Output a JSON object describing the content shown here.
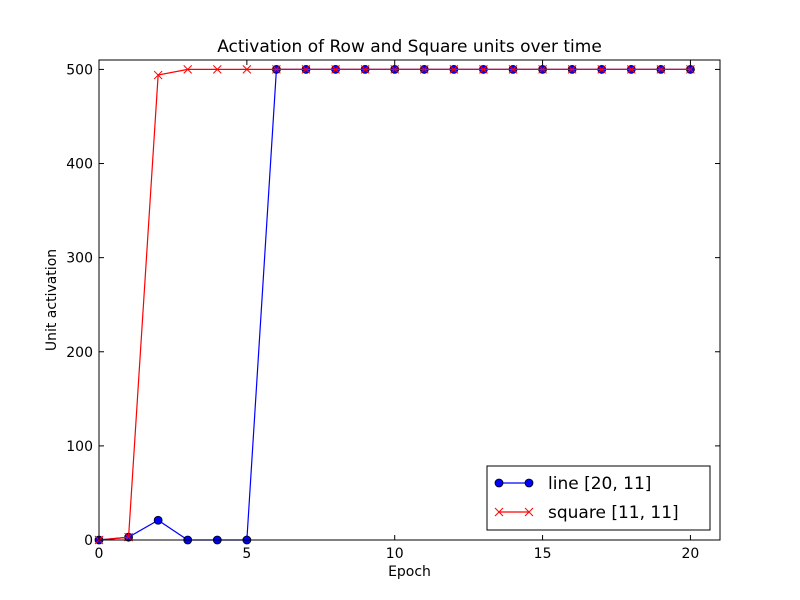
{
  "chart_data": {
    "type": "line",
    "title": "Activation of Row and Square units over time",
    "xlabel": "Epoch",
    "ylabel": "Unit activation",
    "xlim": [
      0,
      21
    ],
    "ylim": [
      0,
      510
    ],
    "xticks": [
      0,
      5,
      10,
      15,
      20
    ],
    "yticks": [
      0,
      100,
      200,
      300,
      400,
      500
    ],
    "grid": false,
    "legend_position": "lower-right",
    "x": [
      0,
      1,
      2,
      3,
      4,
      5,
      6,
      7,
      8,
      9,
      10,
      11,
      12,
      13,
      14,
      15,
      16,
      17,
      18,
      19,
      20
    ],
    "series": [
      {
        "name": "line [20, 11]",
        "color": "#0000ff",
        "marker": "circle",
        "values": [
          0,
          3,
          21,
          0,
          0,
          0,
          500,
          500,
          500,
          500,
          500,
          500,
          500,
          500,
          500,
          500,
          500,
          500,
          500,
          500,
          500
        ]
      },
      {
        "name": "square [11, 11]",
        "color": "#ff0000",
        "marker": "x",
        "values": [
          0,
          3,
          494,
          500,
          500,
          500,
          500,
          500,
          500,
          500,
          500,
          500,
          500,
          500,
          500,
          500,
          500,
          500,
          500,
          500,
          500
        ]
      }
    ]
  }
}
